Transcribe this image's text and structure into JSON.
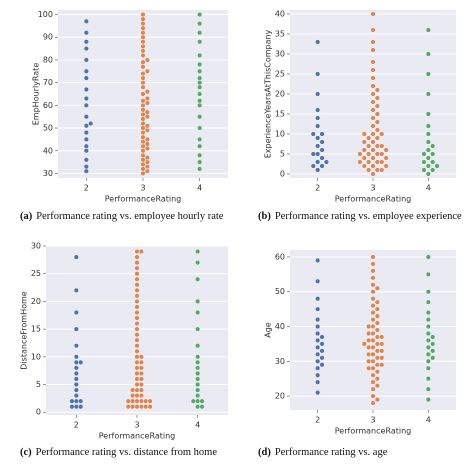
{
  "chart_data": [
    {
      "type": "swarm",
      "label": "(a)",
      "caption": "Performance rating vs. employee hourly rate",
      "xlabel": "PerformanceRating",
      "ylabel": "EmpHourlyRate",
      "categories": [
        "2",
        "3",
        "4"
      ],
      "colors": [
        "#4c72b0",
        "#dd8452",
        "#55a868"
      ],
      "ylim": [
        28,
        102
      ],
      "yticks": [
        30,
        40,
        50,
        60,
        70,
        80,
        90,
        100
      ],
      "grid": true,
      "values": [
        [
          31,
          33,
          36,
          40,
          42,
          45,
          48,
          51,
          52,
          55,
          60,
          63,
          67,
          72,
          75,
          80,
          85,
          88,
          92,
          97
        ],
        [
          30,
          31,
          32,
          33,
          34,
          35,
          36,
          37,
          38,
          40,
          41,
          42,
          43,
          44,
          45,
          46,
          48,
          49,
          50,
          51,
          52,
          54,
          55,
          56,
          57,
          58,
          60,
          61,
          62,
          63,
          65,
          66,
          68,
          70,
          72,
          74,
          75,
          77,
          79,
          80,
          82,
          84,
          86,
          88,
          90,
          92,
          94,
          96,
          98,
          100
        ],
        [
          32,
          35,
          38,
          42,
          45,
          50,
          55,
          60,
          62,
          65,
          68,
          70,
          72,
          75,
          78,
          82,
          88,
          92,
          96,
          100
        ]
      ]
    },
    {
      "type": "swarm",
      "label": "(b)",
      "caption": "Performance rating vs. employee experience",
      "xlabel": "PerformanceRating",
      "ylabel": "ExperienceYearsAtThisCompany",
      "categories": [
        "2",
        "3",
        "4"
      ],
      "colors": [
        "#4c72b0",
        "#dd8452",
        "#55a868"
      ],
      "ylim": [
        -1,
        41
      ],
      "yticks": [
        0,
        5,
        10,
        15,
        20,
        25,
        30,
        35,
        40
      ],
      "grid": true,
      "values": [
        [
          1,
          2,
          2,
          3,
          3,
          4,
          5,
          5,
          6,
          7,
          8,
          9,
          10,
          10,
          12,
          14,
          16,
          20,
          25,
          33
        ],
        [
          0,
          1,
          1,
          1,
          2,
          2,
          2,
          3,
          3,
          3,
          3,
          4,
          4,
          4,
          5,
          5,
          5,
          5,
          6,
          6,
          6,
          7,
          7,
          7,
          8,
          8,
          9,
          9,
          10,
          10,
          10,
          11,
          12,
          13,
          14,
          15,
          16,
          17,
          18,
          19,
          20,
          21,
          22,
          24,
          26,
          28,
          31,
          33,
          36,
          40
        ],
        [
          0,
          1,
          1,
          2,
          2,
          3,
          3,
          4,
          5,
          5,
          6,
          7,
          8,
          10,
          12,
          15,
          20,
          25,
          30,
          36
        ]
      ]
    },
    {
      "type": "swarm",
      "label": "(c)",
      "caption": "Performance rating vs. distance from home",
      "xlabel": "PerformanceRating",
      "ylabel": "DistanceFromHome",
      "categories": [
        "2",
        "3",
        "4"
      ],
      "colors": [
        "#4c72b0",
        "#dd8452",
        "#55a868"
      ],
      "ylim": [
        -0.5,
        30
      ],
      "yticks": [
        0,
        5,
        10,
        15,
        20,
        25,
        30
      ],
      "grid": true,
      "values": [
        [
          1,
          1,
          1,
          2,
          2,
          2,
          3,
          4,
          5,
          6,
          7,
          8,
          9,
          9,
          10,
          12,
          15,
          18,
          22,
          28
        ],
        [
          1,
          1,
          1,
          1,
          1,
          2,
          2,
          2,
          2,
          2,
          3,
          3,
          3,
          4,
          4,
          4,
          5,
          5,
          6,
          6,
          7,
          7,
          8,
          8,
          9,
          9,
          10,
          10,
          11,
          12,
          13,
          14,
          15,
          16,
          17,
          18,
          19,
          20,
          21,
          22,
          23,
          24,
          25,
          26,
          27,
          28,
          29,
          29,
          2,
          1
        ],
        [
          1,
          1,
          2,
          2,
          2,
          3,
          4,
          5,
          6,
          7,
          8,
          9,
          10,
          12,
          15,
          18,
          20,
          24,
          27,
          29
        ]
      ]
    },
    {
      "type": "swarm",
      "label": "(d)",
      "caption": "Performance rating vs. age",
      "xlabel": "PerformanceRating",
      "ylabel": "Age",
      "categories": [
        "2",
        "3",
        "4"
      ],
      "colors": [
        "#4c72b0",
        "#dd8452",
        "#55a868"
      ],
      "ylim": [
        16,
        62
      ],
      "yticks": [
        20,
        30,
        40,
        50,
        60
      ],
      "grid": true,
      "values": [
        [
          21,
          24,
          26,
          28,
          29,
          30,
          31,
          32,
          33,
          34,
          35,
          36,
          37,
          38,
          40,
          42,
          45,
          48,
          53,
          59
        ],
        [
          18,
          19,
          20,
          22,
          23,
          24,
          25,
          26,
          27,
          28,
          28,
          29,
          29,
          30,
          30,
          31,
          31,
          32,
          32,
          33,
          33,
          34,
          34,
          35,
          35,
          35,
          36,
          36,
          37,
          37,
          38,
          38,
          39,
          40,
          40,
          41,
          42,
          43,
          44,
          45,
          46,
          47,
          48,
          50,
          51,
          52,
          54,
          56,
          58,
          60
        ],
        [
          19,
          22,
          25,
          28,
          30,
          31,
          32,
          33,
          34,
          35,
          36,
          37,
          38,
          40,
          42,
          44,
          47,
          50,
          55,
          60
        ]
      ]
    }
  ]
}
